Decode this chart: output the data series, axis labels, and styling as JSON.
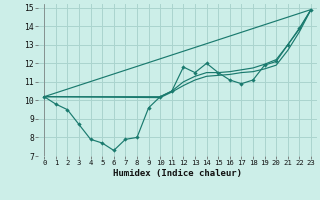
{
  "xlabel": "Humidex (Indice chaleur)",
  "bg_color": "#cceee8",
  "grid_color": "#aad4ce",
  "line_color": "#1a7a6e",
  "xlim": [
    -0.5,
    23.5
  ],
  "ylim": [
    7,
    15.2
  ],
  "xticks": [
    0,
    1,
    2,
    3,
    4,
    5,
    6,
    7,
    8,
    9,
    10,
    11,
    12,
    13,
    14,
    15,
    16,
    17,
    18,
    19,
    20,
    21,
    22,
    23
  ],
  "yticks": [
    7,
    8,
    9,
    10,
    11,
    12,
    13,
    14,
    15
  ],
  "line1_x": [
    0,
    1,
    2,
    3,
    4,
    5,
    6,
    7,
    8,
    9,
    10,
    11,
    12,
    13,
    14,
    15,
    16,
    17,
    18,
    19,
    20,
    21,
    22,
    23
  ],
  "line1_y": [
    10.2,
    9.8,
    9.5,
    8.7,
    7.9,
    7.7,
    7.3,
    7.9,
    8.0,
    9.6,
    10.2,
    10.5,
    11.8,
    11.5,
    12.0,
    11.5,
    11.1,
    10.9,
    11.1,
    11.9,
    12.1,
    13.0,
    13.9,
    14.9
  ],
  "line2_x": [
    0,
    23
  ],
  "line2_y": [
    10.2,
    14.9
  ],
  "line3_x": [
    0,
    10,
    11,
    12,
    13,
    14,
    15,
    16,
    17,
    18,
    19,
    20,
    21,
    22,
    23
  ],
  "line3_y": [
    10.2,
    10.2,
    10.5,
    11.0,
    11.3,
    11.5,
    11.5,
    11.55,
    11.65,
    11.75,
    11.95,
    12.2,
    13.0,
    13.85,
    14.9
  ],
  "line4_x": [
    0,
    10,
    11,
    12,
    13,
    14,
    15,
    16,
    17,
    18,
    19,
    20,
    21,
    22,
    23
  ],
  "line4_y": [
    10.2,
    10.15,
    10.45,
    10.8,
    11.1,
    11.3,
    11.35,
    11.4,
    11.5,
    11.55,
    11.7,
    11.9,
    12.7,
    13.7,
    14.9
  ]
}
